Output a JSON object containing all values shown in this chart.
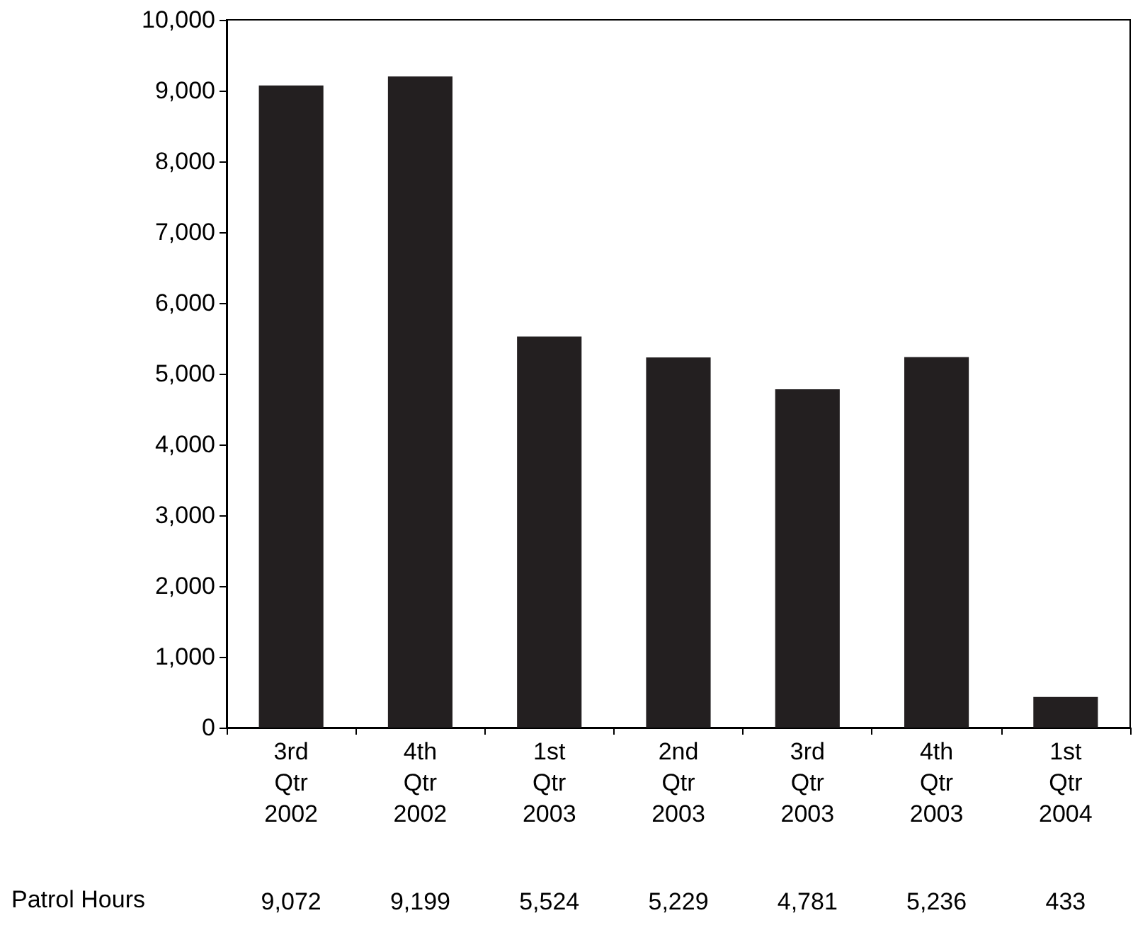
{
  "chart_data": {
    "type": "bar",
    "categories": [
      "3rd\nQtr\n2002",
      "4th\nQtr\n2002",
      "1st\nQtr\n2003",
      "2nd\nQtr\n2003",
      "3rd\nQtr\n2003",
      "4th\nQtr\n2003",
      "1st\nQtr\n2004"
    ],
    "series": [
      {
        "name": "Patrol Hours",
        "color": "#231f20",
        "values": [
          9072,
          9199,
          5524,
          5229,
          4781,
          5236,
          433
        ],
        "value_labels": [
          "9,072",
          "9,199",
          "5,524",
          "5,229",
          "4,781",
          "5,236",
          "433"
        ]
      }
    ],
    "ylim": [
      0,
      10000
    ],
    "yticks": [
      {
        "value": 0,
        "label": "0"
      },
      {
        "value": 1000,
        "label": "1,000"
      },
      {
        "value": 2000,
        "label": "2,000"
      },
      {
        "value": 3000,
        "label": "3,000"
      },
      {
        "value": 4000,
        "label": "4,000"
      },
      {
        "value": 5000,
        "label": "5,000"
      },
      {
        "value": 6000,
        "label": "6,000"
      },
      {
        "value": 7000,
        "label": "7,000"
      },
      {
        "value": 8000,
        "label": "8,000"
      },
      {
        "value": 9000,
        "label": "9,000"
      },
      {
        "value": 10000,
        "label": "10,000"
      }
    ],
    "grid": false,
    "legend": false
  }
}
